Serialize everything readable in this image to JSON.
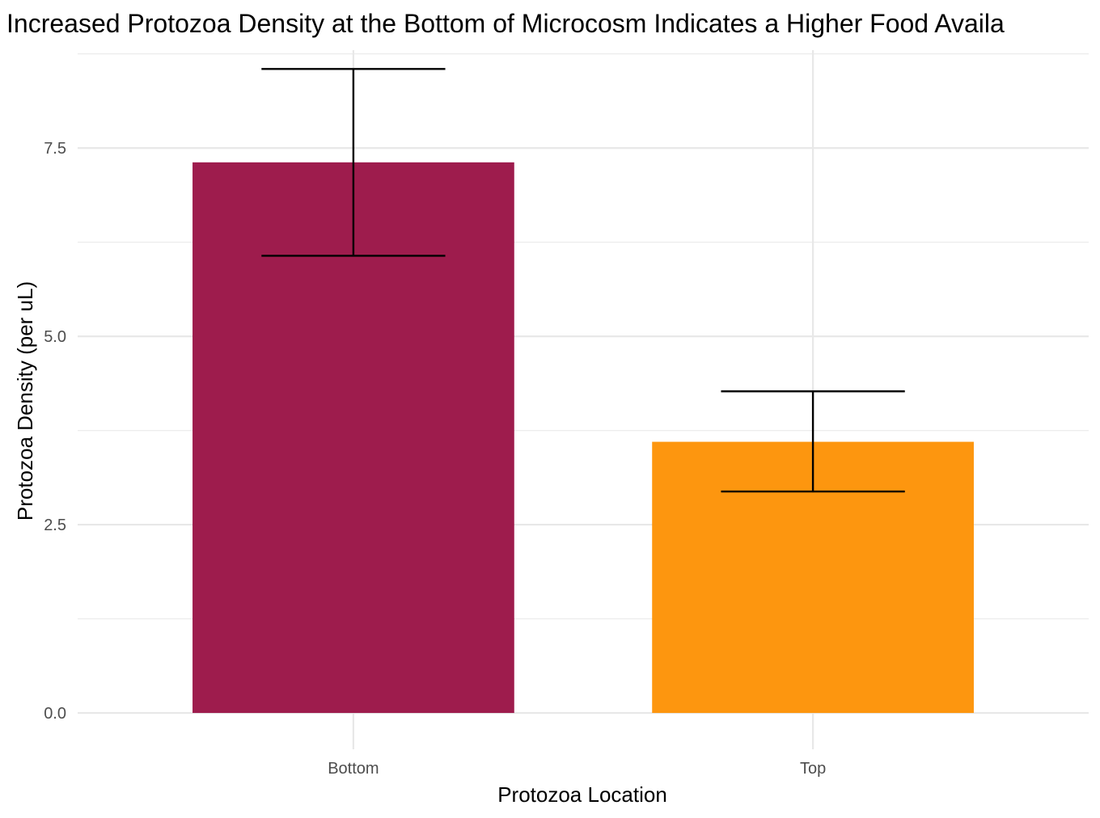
{
  "chart_data": {
    "type": "bar",
    "title": "Increased Protozoa Density at the Bottom of Microcosm Indicates a Higher Food Availa",
    "xlabel": "Protozoa Location",
    "ylabel": "Protozoa Density (per uL)",
    "categories": [
      "Bottom",
      "Top"
    ],
    "values": [
      7.31,
      3.6
    ],
    "error_low": [
      6.07,
      2.94
    ],
    "error_high": [
      8.55,
      4.27
    ],
    "colors": [
      "#9e1c4d",
      "#fd960f"
    ],
    "ylim": [
      -0.3,
      8.8
    ],
    "yticks": [
      0.0,
      2.5,
      5.0,
      7.5
    ],
    "ytick_labels": [
      "0.0",
      "2.5",
      "5.0",
      "7.5"
    ],
    "grid": true,
    "legend": false
  }
}
